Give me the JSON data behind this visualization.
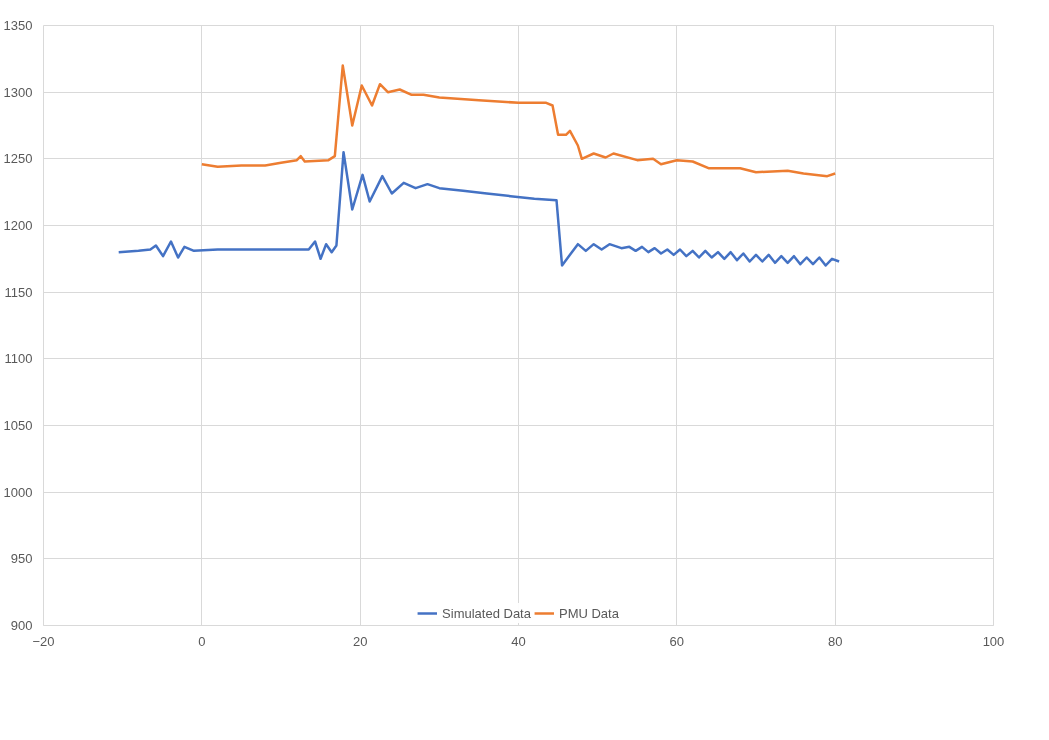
{
  "chart_data": {
    "type": "line",
    "xlim": [
      -20,
      100
    ],
    "xticks": [
      -20,
      0,
      20,
      40,
      60,
      80,
      100
    ],
    "ylim": [
      900,
      1350
    ],
    "yticks": [
      900,
      950,
      1000,
      1050,
      1100,
      1150,
      1200,
      1250,
      1300,
      1350
    ],
    "grid": true,
    "legend": "bottom",
    "line_style": "solid",
    "marker": "none",
    "series": [
      {
        "name": "Simulated Data",
        "color": "#4472c4",
        "x": [
          -10.5,
          -8,
          -6.5,
          -5.8,
          -4.9,
          -3.9,
          -3,
          -2.2,
          -1,
          2,
          6,
          10,
          13.5,
          14.3,
          15,
          15.7,
          16.4,
          17,
          17.9,
          19,
          20.3,
          21.2,
          22.8,
          24,
          25.5,
          27,
          28.5,
          30,
          33,
          36,
          39,
          42,
          44.8,
          45.5,
          46.5,
          47.5,
          48.5,
          49.5,
          50.5,
          51.5,
          53,
          54,
          54.8,
          55.6,
          56.4,
          57.2,
          58,
          58.8,
          59.6,
          60.4,
          61.2,
          62,
          62.8,
          63.6,
          64.4,
          65.2,
          66,
          66.8,
          67.6,
          68.4,
          69.2,
          70,
          70.8,
          71.6,
          72.4,
          73.2,
          74,
          74.8,
          75.6,
          76.4,
          77.2,
          78,
          78.8,
          79.6,
          80.5
        ],
        "values": [
          1180,
          1181,
          1182,
          1185,
          1177,
          1188,
          1176,
          1184,
          1181,
          1182,
          1182,
          1182,
          1182,
          1188,
          1175,
          1186,
          1180,
          1185,
          1255,
          1212,
          1238,
          1218,
          1237,
          1224,
          1232,
          1228,
          1231,
          1228,
          1226,
          1224,
          1222,
          1220,
          1219,
          1170,
          1178,
          1186,
          1181,
          1186,
          1182,
          1186,
          1183,
          1184,
          1181,
          1184,
          1180,
          1183,
          1179,
          1182,
          1178,
          1182,
          1177,
          1181,
          1176,
          1181,
          1176,
          1180,
          1175,
          1180,
          1174,
          1179,
          1173,
          1178,
          1173,
          1178,
          1172,
          1177,
          1172,
          1177,
          1171,
          1176,
          1171,
          1176,
          1170,
          1175,
          1173
        ]
      },
      {
        "name": "PMU Data",
        "color": "#ed7d31",
        "x": [
          0,
          2,
          5,
          8,
          10,
          12,
          12.5,
          13,
          16,
          16.8,
          17.8,
          19,
          20.2,
          21.5,
          22.5,
          23.5,
          25,
          26.5,
          28,
          30,
          35,
          40,
          43.5,
          44.3,
          45,
          46,
          46.5,
          47.5,
          48,
          49.5,
          51,
          52,
          55,
          57,
          58,
          60,
          62,
          64,
          68,
          70,
          74,
          76,
          79,
          80
        ],
        "values": [
          1246,
          1244,
          1245,
          1245,
          1247,
          1249,
          1252,
          1248,
          1249,
          1252,
          1320,
          1275,
          1305,
          1290,
          1306,
          1300,
          1302,
          1298,
          1298,
          1296,
          1294,
          1292,
          1292,
          1290,
          1268,
          1268,
          1271,
          1260,
          1250,
          1254,
          1251,
          1254,
          1249,
          1250,
          1246,
          1249,
          1248,
          1243,
          1243,
          1240,
          1241,
          1239,
          1237,
          1239
        ]
      }
    ]
  }
}
